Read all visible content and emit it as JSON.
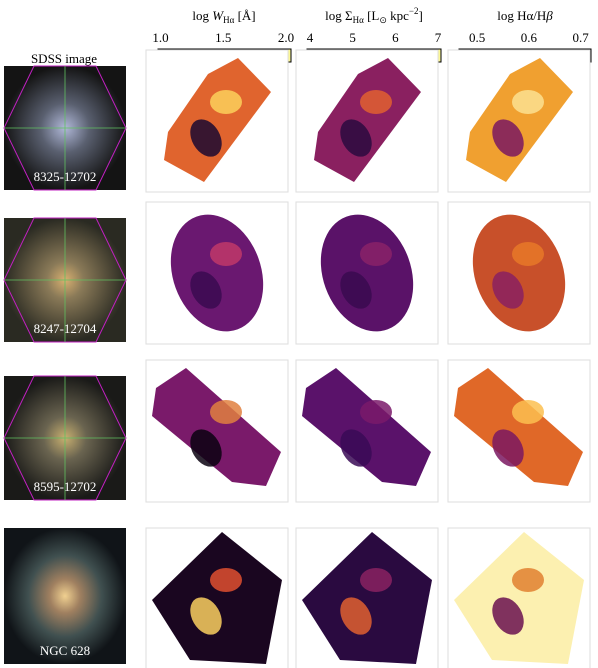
{
  "header": {
    "image_title": "SDSS image"
  },
  "colorbars": [
    {
      "label": [
        "log ",
        "W",
        "Hα",
        " [Å]"
      ],
      "lim": [
        0.98,
        2.04
      ],
      "ticks": [
        {
          "value": 1.0,
          "label": "1.0"
        },
        1.5,
        {
          "value": 2.0,
          "label": "2.0"
        }
      ],
      "reversed": false
    },
    {
      "label": [
        "log Σ",
        "Hα",
        " [L",
        "⊙",
        " kpc",
        "−2",
        "]"
      ],
      "lim": [
        3.93,
        7.07
      ],
      "ticks": [
        4,
        5,
        6,
        7
      ],
      "reversed": false
    },
    {
      "label": [
        "log Hα/H",
        "β"
      ],
      "lim": [
        0.465,
        0.72
      ],
      "ticks": [
        0.5,
        0.6,
        0.7
      ],
      "reversed": true
    }
  ],
  "rows": [
    {
      "label": "8325-12702"
    },
    {
      "label": "8247-12704"
    },
    {
      "label": "8595-12702"
    },
    {
      "label": "NGC 628"
    }
  ]
}
